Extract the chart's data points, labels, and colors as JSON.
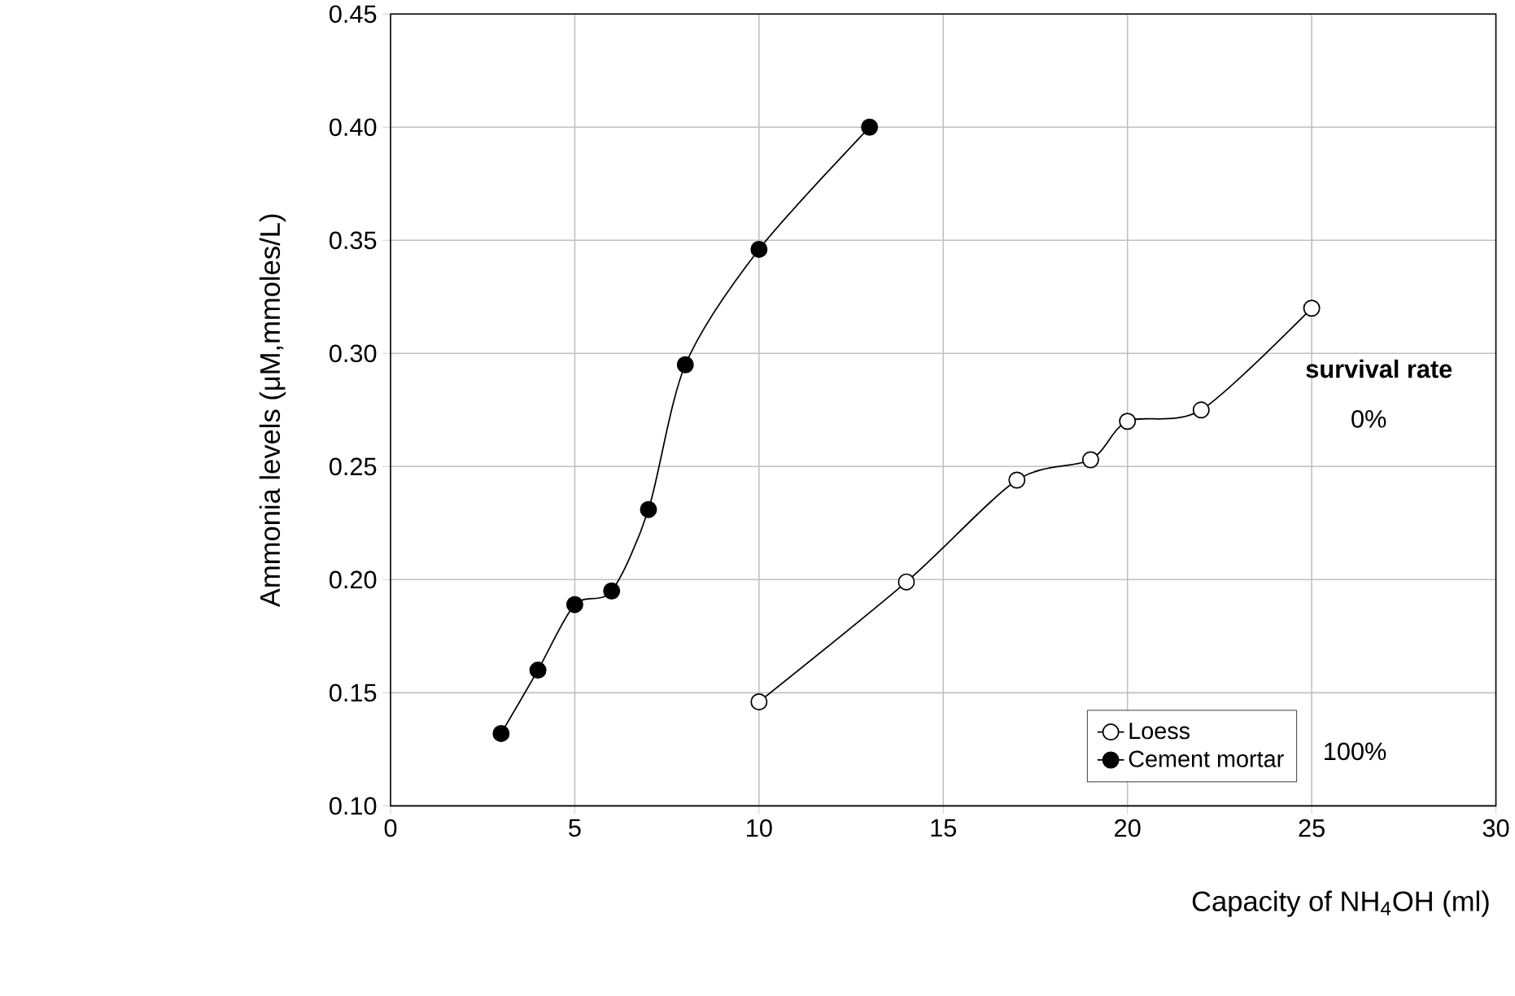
{
  "chart_data": {
    "type": "line",
    "xlabel": "Capacity of NH$_{4}$OH (ml)",
    "ylabel": "Ammonia levels (μM,mmoles/L)",
    "xlim": [
      0,
      30
    ],
    "xticks": [
      0,
      5,
      10,
      15,
      20,
      25,
      30
    ],
    "ylim": [
      0.1,
      0.45
    ],
    "yticks": [
      {
        "value": 0.1,
        "label": "0.10"
      },
      0.15,
      {
        "value": 0.2,
        "label": "0.20"
      },
      0.25,
      {
        "value": 0.3,
        "label": "0.30"
      },
      0.35,
      {
        "value": 0.4,
        "label": "0.40"
      },
      0.45
    ],
    "grid": true,
    "legend": "bottom right",
    "marker": "circle",
    "series": [
      {
        "name": "Loess",
        "color": "#000000",
        "x": [
          10,
          14,
          17,
          19,
          20,
          22,
          25
        ],
        "values": [
          0.146,
          0.199,
          0.244,
          0.253,
          0.27,
          0.275,
          0.32
        ]
      },
      {
        "name": "Cement mortar",
        "color": "#000000",
        "x": [
          3,
          4,
          5,
          6,
          7,
          8,
          10,
          13
        ],
        "values": [
          0.132,
          0.16,
          0.189,
          0.195,
          0.231,
          0.295,
          0.346,
          0.4
        ]
      }
    ],
    "annotations": [
      "**survival rate**",
      "0%",
      "100%"
    ]
  }
}
